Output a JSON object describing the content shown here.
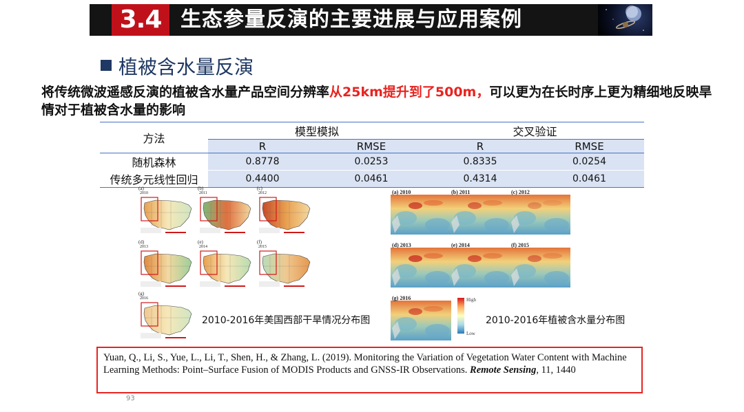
{
  "header": {
    "number": "3.4",
    "title": "生态参量反演的主要进展与应用案例"
  },
  "section": {
    "title": "植被含水量反演"
  },
  "description": {
    "part1": "将传统微波遥感反演的植被含水量产品空间分辨率",
    "highlight": "从25km提升到了500m，",
    "part2": "可以更为在长时序上更为精细地反映旱情对于植被含水量的影响"
  },
  "table": {
    "method_header": "方法",
    "group1": "模型模拟",
    "group2": "交叉验证",
    "sub": [
      "R",
      "RMSE",
      "R",
      "RMSE"
    ],
    "rows": [
      {
        "method": "随机森林",
        "values": [
          "0.8778",
          "0.0253",
          "0.8335",
          "0.0254"
        ]
      },
      {
        "method": "传统多元线性回归",
        "values": [
          "0.4400",
          "0.0461",
          "0.4314",
          "0.0461"
        ]
      }
    ]
  },
  "figures": {
    "drought_panels": [
      "(a)",
      "(b)",
      "(c)",
      "(d)",
      "(e)",
      "(f)",
      "(g)"
    ],
    "drought_years": [
      "2010",
      "2011",
      "2012",
      "2013",
      "2014",
      "2015",
      "2016"
    ],
    "drought_caption": "2010-2016年美国西部干旱情况分布图",
    "vwc_panels": [
      "(a) 2010",
      "(b) 2011",
      "(c) 2012",
      "(d) 2013",
      "(e) 2014",
      "(f) 2015",
      "(g) 2016"
    ],
    "vwc_caption": "2010-2016年植被含水量分布图",
    "legend_high": "High",
    "legend_low": "Low"
  },
  "reference": {
    "text": "Yuan, Q., Li, S., Yue, L., Li, T., Shen, H., & Zhang, L. (2019). Monitoring the Variation of Vegetation Water Content with Machine Learning Methods: Point–Surface Fusion of MODIS Products and GNSS-IR Observations. ",
    "journal": "Remote Sensing",
    "tail": ", 11, 1440"
  },
  "page_number": "93",
  "colors": {
    "accent_red": "#e8231f",
    "title_red": "#c0111a",
    "navy": "#1f3864",
    "table_blue": "#4472c4",
    "table_fill": "#dae3f3"
  }
}
